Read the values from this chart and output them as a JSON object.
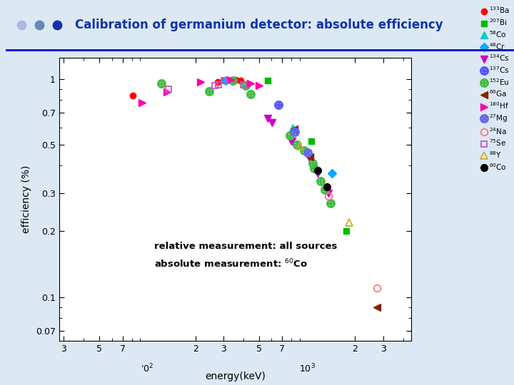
{
  "title": "Calibration of germanium detector: absolute efficiency",
  "xlabel": "energy(keV)",
  "ylabel": "efficiency (%)",
  "bg_color": "#dce9f5",
  "plot_bg": "#ffffff",
  "xlim": [
    28,
    4500
  ],
  "ylim": [
    0.063,
    1.25
  ],
  "series_order": [
    "133Ba",
    "207Bi",
    "58Co",
    "48Cr",
    "134Cs",
    "137Cs",
    "152Eu",
    "66Ga",
    "180Hf",
    "27Mg",
    "24Na",
    "75Se",
    "88Y",
    "60Co"
  ],
  "series": {
    "133Ba": {
      "x": [
        81,
        276,
        303,
        356,
        384
      ],
      "y": [
        0.84,
        0.97,
        0.98,
        0.99,
        0.985
      ],
      "color": "#ff0000",
      "marker": "o",
      "filled": true,
      "ms": 6
    },
    "207Bi": {
      "x": [
        570,
        1064,
        1770
      ],
      "y": [
        0.98,
        0.52,
        0.2
      ],
      "color": "#00bb00",
      "marker": "s",
      "filled": true,
      "ms": 6
    },
    "58Co": {
      "x": [
        811
      ],
      "y": [
        0.6
      ],
      "color": "#00cccc",
      "marker": "^",
      "filled": true,
      "ms": 7
    },
    "48Cr": {
      "x": [
        310,
        1434
      ],
      "y": [
        0.98,
        0.37
      ],
      "color": "#00aaff",
      "marker": "D",
      "filled": true,
      "ms": 6
    },
    "134Cs": {
      "x": [
        569,
        605,
        796,
        802,
        1038,
        1168,
        1365
      ],
      "y": [
        0.66,
        0.63,
        0.52,
        0.52,
        0.43,
        0.37,
        0.3
      ],
      "color": "#cc00cc",
      "marker": "v",
      "filled": true,
      "ms": 7
    },
    "137Cs": {
      "x": [
        662
      ],
      "y": [
        0.76
      ],
      "color": "#5555ff",
      "marker": "$\\oplus$",
      "filled": false,
      "ms": 8
    },
    "152Eu": {
      "x": [
        122,
        245,
        344,
        411,
        444,
        779,
        867,
        964,
        1085,
        1112,
        1213,
        1299,
        1408
      ],
      "y": [
        0.95,
        0.88,
        0.98,
        0.93,
        0.85,
        0.55,
        0.5,
        0.47,
        0.41,
        0.39,
        0.34,
        0.31,
        0.27
      ],
      "color": "#44bb44",
      "marker": "$\\oplus$",
      "filled": false,
      "ms": 8
    },
    "66Ga": {
      "x": [
        834,
        1039,
        2752
      ],
      "y": [
        0.59,
        0.44,
        0.09
      ],
      "color": "#882200",
      "marker": "<",
      "filled": true,
      "ms": 7
    },
    "180Hf": {
      "x": [
        93,
        133,
        215,
        332,
        443,
        500
      ],
      "y": [
        0.78,
        0.87,
        0.97,
        0.99,
        0.95,
        0.93
      ],
      "color": "#ff00aa",
      "marker": ">",
      "filled": true,
      "ms": 7
    },
    "27Mg": {
      "x": [
        844,
        1014
      ],
      "y": [
        0.57,
        0.46
      ],
      "color": "#6666ee",
      "marker": "$\\otimes$",
      "filled": false,
      "ms": 8
    },
    "24Na": {
      "x": [
        1369,
        2754
      ],
      "y": [
        0.29,
        0.11
      ],
      "color": "#ff7777",
      "marker": "o",
      "filled": false,
      "ms": 7
    },
    "75Se": {
      "x": [
        136,
        265,
        280,
        304,
        401
      ],
      "y": [
        0.9,
        0.93,
        0.94,
        0.985,
        0.94
      ],
      "color": "#cc55cc",
      "marker": "s",
      "filled": false,
      "ms": 6
    },
    "88Y": {
      "x": [
        898,
        1836
      ],
      "y": [
        0.49,
        0.22
      ],
      "color": "#ccaa33",
      "marker": "^",
      "filled": false,
      "ms": 7
    },
    "60Co": {
      "x": [
        1173,
        1332
      ],
      "y": [
        0.38,
        0.32
      ],
      "color": "#000000",
      "marker": "o",
      "filled": true,
      "ms": 7
    }
  },
  "legend_labels": [
    "^{133}Ba",
    "^{207}Bi",
    "^{58}Co",
    "^{48}Cr",
    "^{134}Cs",
    "^{137}Cs",
    "^{152}Eu",
    "^{66}Ga",
    "^{180}Hf",
    "^{27}Mg",
    "^{24}Na",
    "^{75}Se",
    "^{88}Y",
    "^{60}Co"
  ],
  "header_dot_colors": [
    "#aabbdd",
    "#6688bb",
    "#1133aa"
  ],
  "header_title_color": "#1133aa",
  "header_line_color": "#0000cc",
  "annot_line1": "relative measurement: all sources",
  "annot_line2": "absolute measurement: ^{60}Co",
  "yticks": [
    0.07,
    0.1,
    0.2,
    0.3,
    0.5,
    0.7,
    1.0
  ],
  "ytick_labels": [
    "0.07",
    "0.1",
    "0.2",
    "0.3",
    "0.5",
    "0.7",
    "1"
  ],
  "xtick_vals": [
    30,
    50,
    70,
    200,
    300,
    500,
    700,
    2000,
    3000
  ],
  "xtick_labels": [
    "3",
    "5",
    "7",
    "2",
    "3",
    "5",
    "7",
    "2",
    "3"
  ]
}
